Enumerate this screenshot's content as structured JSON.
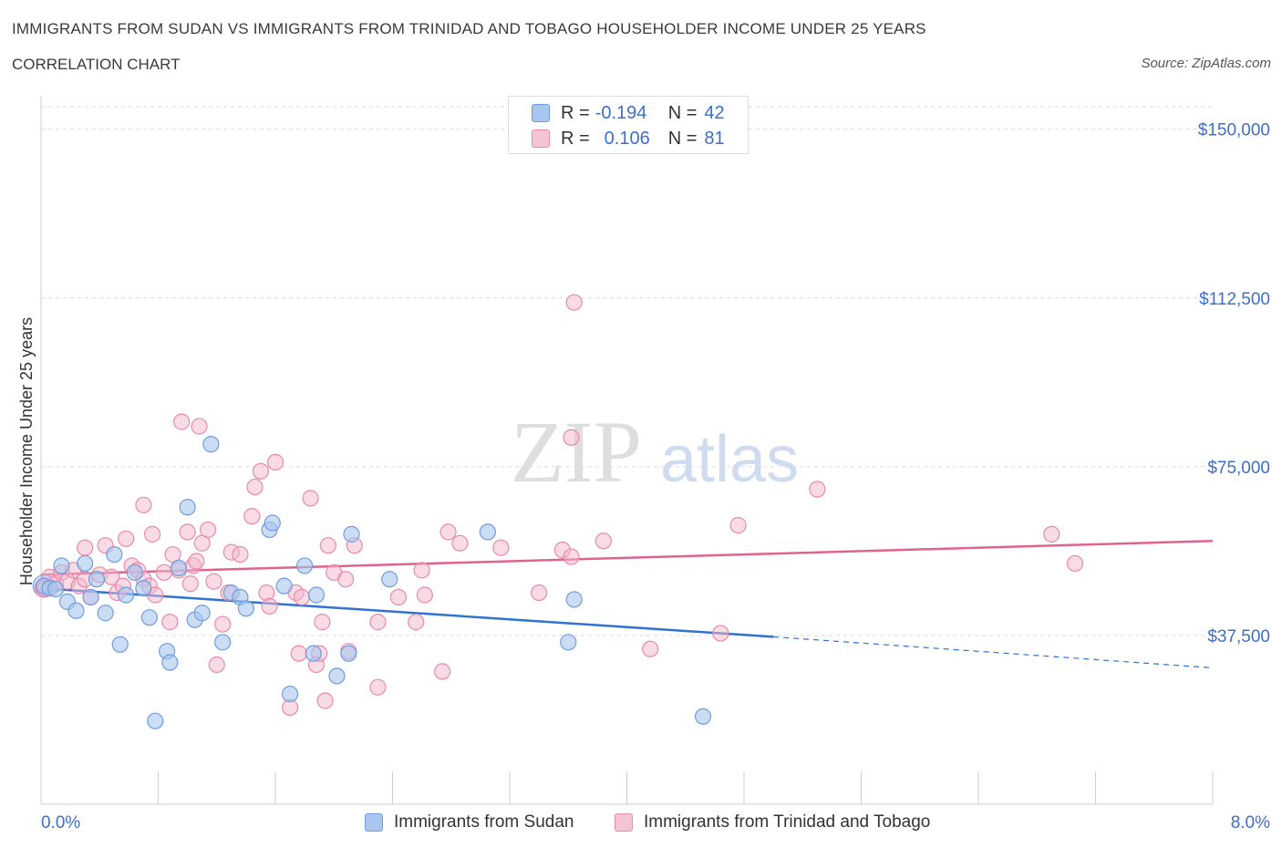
{
  "header": {
    "title": "IMMIGRANTS FROM SUDAN VS IMMIGRANTS FROM TRINIDAD AND TOBAGO HOUSEHOLDER INCOME UNDER 25 YEARS",
    "subtitle": "CORRELATION CHART",
    "source": "Source: ZipAtlas.com"
  },
  "legend": {
    "rows": [
      {
        "r_label": "R =",
        "r_value": "-0.194",
        "n_label": "N =",
        "n_value": "42"
      },
      {
        "r_label": "R =",
        "r_value": "0.106",
        "n_label": "N =",
        "n_value": "81"
      }
    ]
  },
  "colors": {
    "blue_fill": "#a9c6ef",
    "blue_stroke": "#6f9de0",
    "blue_line": "#2f72d0",
    "pink_fill": "#f4b8cc",
    "pink_stroke": "#e98aa9",
    "pink_line": "#e0628f",
    "axis_text": "#3d6fc9",
    "grid": "#d9d9d9"
  },
  "watermark": {
    "zip": "ZIP",
    "atlas": "atlas"
  },
  "chart_data": {
    "type": "scatter",
    "title": "IMMIGRANTS FROM SUDAN VS IMMIGRANTS FROM TRINIDAD AND TOBAGO HOUSEHOLDER INCOME UNDER 25 YEARS",
    "subtitle": "CORRELATION CHART",
    "xlabel": "",
    "ylabel": "Householder Income Under 25 years",
    "xlim": [
      0,
      8
    ],
    "ylim": [
      0,
      155000
    ],
    "x_tick_labels": [
      "0.0%",
      "8.0%"
    ],
    "y_ticks": [
      37500,
      75000,
      112500,
      150000
    ],
    "y_tick_labels": [
      "$37,500",
      "$75,000",
      "$112,500",
      "$150,000"
    ],
    "grid": true,
    "legend_position": "top-center",
    "series": [
      {
        "name": "Immigrants from Sudan",
        "r": -0.194,
        "n": 42,
        "points": [
          [
            0.02,
            48500
          ],
          [
            0.06,
            48000
          ],
          [
            0.1,
            47800
          ],
          [
            0.14,
            53000
          ],
          [
            0.18,
            45000
          ],
          [
            0.24,
            43000
          ],
          [
            0.3,
            53500
          ],
          [
            0.34,
            46000
          ],
          [
            0.38,
            50000
          ],
          [
            0.44,
            42500
          ],
          [
            0.5,
            55500
          ],
          [
            0.54,
            35500
          ],
          [
            0.58,
            46500
          ],
          [
            0.64,
            51500
          ],
          [
            0.7,
            48000
          ],
          [
            0.74,
            41500
          ],
          [
            0.78,
            18500
          ],
          [
            0.86,
            34000
          ],
          [
            0.88,
            31500
          ],
          [
            0.94,
            52500
          ],
          [
            1.0,
            66000
          ],
          [
            1.05,
            41000
          ],
          [
            1.1,
            42500
          ],
          [
            1.16,
            80000
          ],
          [
            1.24,
            36000
          ],
          [
            1.3,
            47000
          ],
          [
            1.36,
            46000
          ],
          [
            1.4,
            43500
          ],
          [
            1.56,
            61000
          ],
          [
            1.58,
            62500
          ],
          [
            1.66,
            48500
          ],
          [
            1.7,
            24500
          ],
          [
            1.8,
            53000
          ],
          [
            1.86,
            33500
          ],
          [
            1.88,
            46500
          ],
          [
            2.02,
            28500
          ],
          [
            2.1,
            33500
          ],
          [
            2.12,
            60000
          ],
          [
            2.38,
            50000
          ],
          [
            3.05,
            60500
          ],
          [
            3.6,
            36000
          ],
          [
            3.64,
            45500
          ],
          [
            4.52,
            19500
          ]
        ],
        "trend": {
          "x": [
            0,
            5.0
          ],
          "y": [
            48000,
            37200
          ]
        },
        "trend_extension": {
          "x": [
            5.0,
            8.0
          ],
          "y": [
            37200,
            30300
          ]
        }
      },
      {
        "name": "Immigrants from Trinidad and Tobago",
        "r": 0.106,
        "n": 81,
        "points": [
          [
            0.02,
            48000
          ],
          [
            0.06,
            50500
          ],
          [
            0.1,
            49000
          ],
          [
            0.14,
            51500
          ],
          [
            0.18,
            49500
          ],
          [
            0.22,
            52000
          ],
          [
            0.26,
            48500
          ],
          [
            0.3,
            50000
          ],
          [
            0.3,
            57000
          ],
          [
            0.34,
            46000
          ],
          [
            0.4,
            51000
          ],
          [
            0.44,
            57500
          ],
          [
            0.48,
            50500
          ],
          [
            0.52,
            47000
          ],
          [
            0.56,
            48500
          ],
          [
            0.58,
            59000
          ],
          [
            0.62,
            53000
          ],
          [
            0.66,
            52000
          ],
          [
            0.7,
            50000
          ],
          [
            0.7,
            66500
          ],
          [
            0.74,
            48500
          ],
          [
            0.76,
            60000
          ],
          [
            0.78,
            46500
          ],
          [
            0.84,
            51500
          ],
          [
            0.88,
            40500
          ],
          [
            0.9,
            55500
          ],
          [
            0.94,
            52000
          ],
          [
            0.96,
            85000
          ],
          [
            1.0,
            60500
          ],
          [
            1.02,
            49000
          ],
          [
            1.04,
            53000
          ],
          [
            1.06,
            54000
          ],
          [
            1.08,
            84000
          ],
          [
            1.1,
            58000
          ],
          [
            1.14,
            61000
          ],
          [
            1.18,
            49500
          ],
          [
            1.2,
            31000
          ],
          [
            1.24,
            40000
          ],
          [
            1.28,
            47000
          ],
          [
            1.3,
            56000
          ],
          [
            1.36,
            55500
          ],
          [
            1.44,
            64000
          ],
          [
            1.46,
            70500
          ],
          [
            1.5,
            74000
          ],
          [
            1.54,
            47000
          ],
          [
            1.56,
            44000
          ],
          [
            1.6,
            76000
          ],
          [
            1.7,
            21500
          ],
          [
            1.74,
            47000
          ],
          [
            1.76,
            33500
          ],
          [
            1.78,
            46000
          ],
          [
            1.84,
            68000
          ],
          [
            1.88,
            31000
          ],
          [
            1.9,
            33500
          ],
          [
            1.92,
            40500
          ],
          [
            1.94,
            23000
          ],
          [
            1.96,
            57500
          ],
          [
            2.0,
            51500
          ],
          [
            2.08,
            50000
          ],
          [
            2.1,
            34000
          ],
          [
            2.14,
            57500
          ],
          [
            2.3,
            40500
          ],
          [
            2.3,
            26000
          ],
          [
            2.44,
            46000
          ],
          [
            2.56,
            40500
          ],
          [
            2.6,
            52000
          ],
          [
            2.62,
            46500
          ],
          [
            2.74,
            29500
          ],
          [
            2.78,
            60500
          ],
          [
            2.86,
            58000
          ],
          [
            3.14,
            57000
          ],
          [
            3.4,
            47000
          ],
          [
            3.56,
            56500
          ],
          [
            3.62,
            55000
          ],
          [
            3.62,
            81500
          ],
          [
            3.64,
            111500
          ],
          [
            3.84,
            58500
          ],
          [
            4.16,
            34500
          ],
          [
            4.64,
            38000
          ],
          [
            4.76,
            62000
          ],
          [
            5.3,
            70000
          ],
          [
            6.9,
            60000
          ],
          [
            7.06,
            53500
          ]
        ],
        "trend": {
          "x": [
            0,
            8.0
          ],
          "y": [
            51000,
            58500
          ]
        }
      }
    ]
  },
  "bottom_legend": {
    "items": [
      {
        "label": "Immigrants from Sudan"
      },
      {
        "label": "Immigrants from Trinidad and Tobago"
      }
    ]
  }
}
